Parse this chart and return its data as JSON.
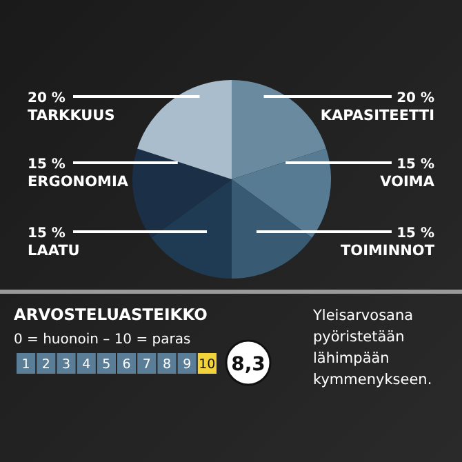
{
  "chart_data": [
    {
      "type": "pie",
      "categories": [
        "KAPASITEETTI",
        "VOIMA",
        "TOIMINNOT",
        "LAATU",
        "ERGONOMIA",
        "TARKKUUS"
      ],
      "values": [
        20,
        15,
        15,
        15,
        15,
        20
      ],
      "colors": [
        "#6a8aa0",
        "#567b92",
        "#385b73",
        "#1f3b53",
        "#1b2f46",
        "#a9bdcc"
      ],
      "value_labels": [
        "20 %",
        "15 %",
        "15 %",
        "15 %",
        "15 %",
        "20 %"
      ],
      "legend": false
    },
    {
      "type": "heatmap",
      "categories": [
        null,
        null,
        null,
        null,
        null,
        null,
        null,
        null,
        null,
        null
      ],
      "y_categories": [
        null
      ],
      "cells": [
        [
          1,
          2,
          3,
          4,
          5,
          6,
          7,
          8,
          9,
          10
        ]
      ],
      "data_labels": true,
      "title": "ARVOSTELUASTEIKKO",
      "subtitle": "0 = huonoin – 10 = paras",
      "colors": [
        "#5b7e98",
        "#5b7e98",
        "#5b7e98",
        "#5b7e98",
        "#5b7e98",
        "#5b7e98",
        "#5b7e98",
        "#5b7e98",
        "#5b7e98",
        "#f2d33a"
      ],
      "annotations": [
        "8,3",
        "Yleisarvosana pyöristetään lähimpään kymmenykseen."
      ]
    }
  ]
}
